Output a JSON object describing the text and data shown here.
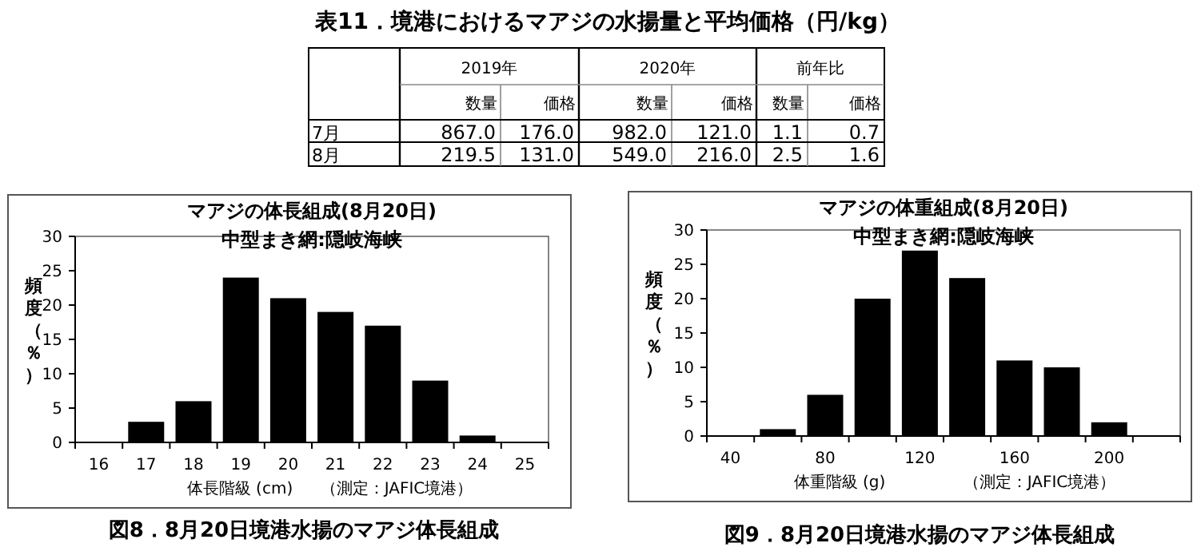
{
  "chart_data": [
    {
      "type": "other",
      "title": "表11．境港におけるマアジの水揚量と平均価格（円/kg）",
      "annotations": [
        "2019年",
        "2020年",
        "前年比",
        "数量",
        "価格",
        "数量",
        "価格",
        "数量",
        "価格",
        "7月",
        "867.0",
        "176.0",
        "982.0",
        "121.0",
        "1.1",
        "0.7",
        "8月",
        "219.5",
        "131.0",
        "549.0",
        "216.0",
        "2.5",
        "1.6"
      ]
    },
    {
      "type": "bar",
      "title": "マアジの体長組成(8月20日)",
      "subtitle": "中型まき網:隠岐海峡",
      "xlabel": "体長階級 (cm)",
      "ylabel": "頻度（％）",
      "categories": [
        "16",
        "17",
        "18",
        "19",
        "20",
        "21",
        "22",
        "23",
        "24",
        "25"
      ],
      "values": [
        0,
        3,
        6,
        24,
        21,
        19,
        17,
        9,
        1,
        0
      ],
      "color": "#000000",
      "ylim": [
        0,
        30
      ],
      "yticks": [
        0,
        5,
        10,
        15,
        20,
        25,
        30
      ],
      "annotations": [
        "（測定：JAFIC境港）",
        "図8．8月20日境港水揚のマアジ体長組成"
      ]
    },
    {
      "type": "bar",
      "title": "マアジの体重組成(8月20日)",
      "subtitle": "中型まき網:隠岐海峡",
      "xlabel": "体重階級 (g)",
      "ylabel": "頻度（％）",
      "categories": [
        "40",
        null,
        "80",
        null,
        "120",
        null,
        "160",
        null,
        "200",
        null
      ],
      "values": [
        0,
        1,
        6,
        20,
        27,
        23,
        11,
        10,
        2,
        0
      ],
      "color": "#000000",
      "ylim": [
        0,
        30
      ],
      "yticks": [
        0,
        5,
        10,
        15,
        20,
        25,
        30
      ],
      "annotations": [
        "（測定：JAFIC境港）",
        "図9．8月20日境港水揚のマアジ体長組成"
      ]
    }
  ]
}
